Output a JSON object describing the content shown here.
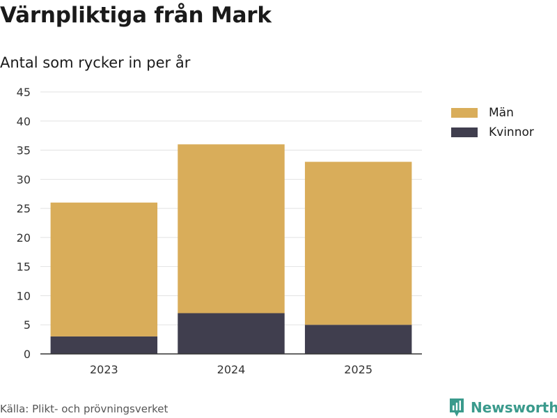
{
  "header": {
    "title": "Värnpliktiga från Mark",
    "subtitle": "Antal som rycker in per år"
  },
  "footer": {
    "source": "Källa: Plikt- och prövningsverket",
    "brand": "Newsworthy"
  },
  "icons": {
    "brand_logo": "newsworthy-logo-icon"
  },
  "chart_data": {
    "type": "bar",
    "stacked": true,
    "categories": [
      "2023",
      "2024",
      "2025"
    ],
    "series": [
      {
        "name": "Kvinnor",
        "values": [
          3,
          7,
          5
        ],
        "color": "#403e4e"
      },
      {
        "name": "Män",
        "values": [
          23,
          29,
          28
        ],
        "color": "#d9ad5a"
      }
    ],
    "legend_order": [
      "Män",
      "Kvinnor"
    ],
    "legend_position": "right",
    "ylim": [
      0,
      45
    ],
    "yticks": [
      0,
      5,
      10,
      15,
      20,
      25,
      30,
      35,
      40,
      45
    ],
    "grid": true,
    "title": "",
    "xlabel": "",
    "ylabel": ""
  }
}
